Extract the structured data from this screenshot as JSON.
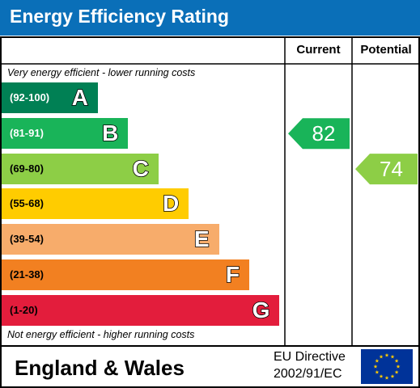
{
  "header": {
    "title": "Energy Efficiency Rating"
  },
  "columns": {
    "current": "Current",
    "potential": "Potential"
  },
  "notes": {
    "top": "Very energy efficient - lower running costs",
    "bottom": "Not energy efficient - higher running costs"
  },
  "bands": [
    {
      "letter": "A",
      "range": "(92-100)",
      "color": "#008054",
      "range_color": "#ffffff"
    },
    {
      "letter": "B",
      "range": "(81-91)",
      "color": "#19b459",
      "range_color": "#ffffff"
    },
    {
      "letter": "C",
      "range": "(69-80)",
      "color": "#8dce46",
      "range_color": "#000000"
    },
    {
      "letter": "D",
      "range": "(55-68)",
      "color": "#ffcc00",
      "range_color": "#000000"
    },
    {
      "letter": "E",
      "range": "(39-54)",
      "color": "#f7ac6b",
      "range_color": "#000000"
    },
    {
      "letter": "F",
      "range": "(21-38)",
      "color": "#f28021",
      "range_color": "#000000"
    },
    {
      "letter": "G",
      "range": "(1-20)",
      "color": "#e31d3c",
      "range_color": "#000000"
    }
  ],
  "ratings": {
    "current": {
      "value": "82",
      "band": "B",
      "color": "#19b459"
    },
    "potential": {
      "value": "74",
      "band": "C",
      "color": "#8dce46"
    }
  },
  "footer": {
    "region": "England & Wales",
    "directive_line1": "EU Directive",
    "directive_line2": "2002/91/EC",
    "flag_color": "#003399",
    "star_color": "#ffcc00"
  }
}
